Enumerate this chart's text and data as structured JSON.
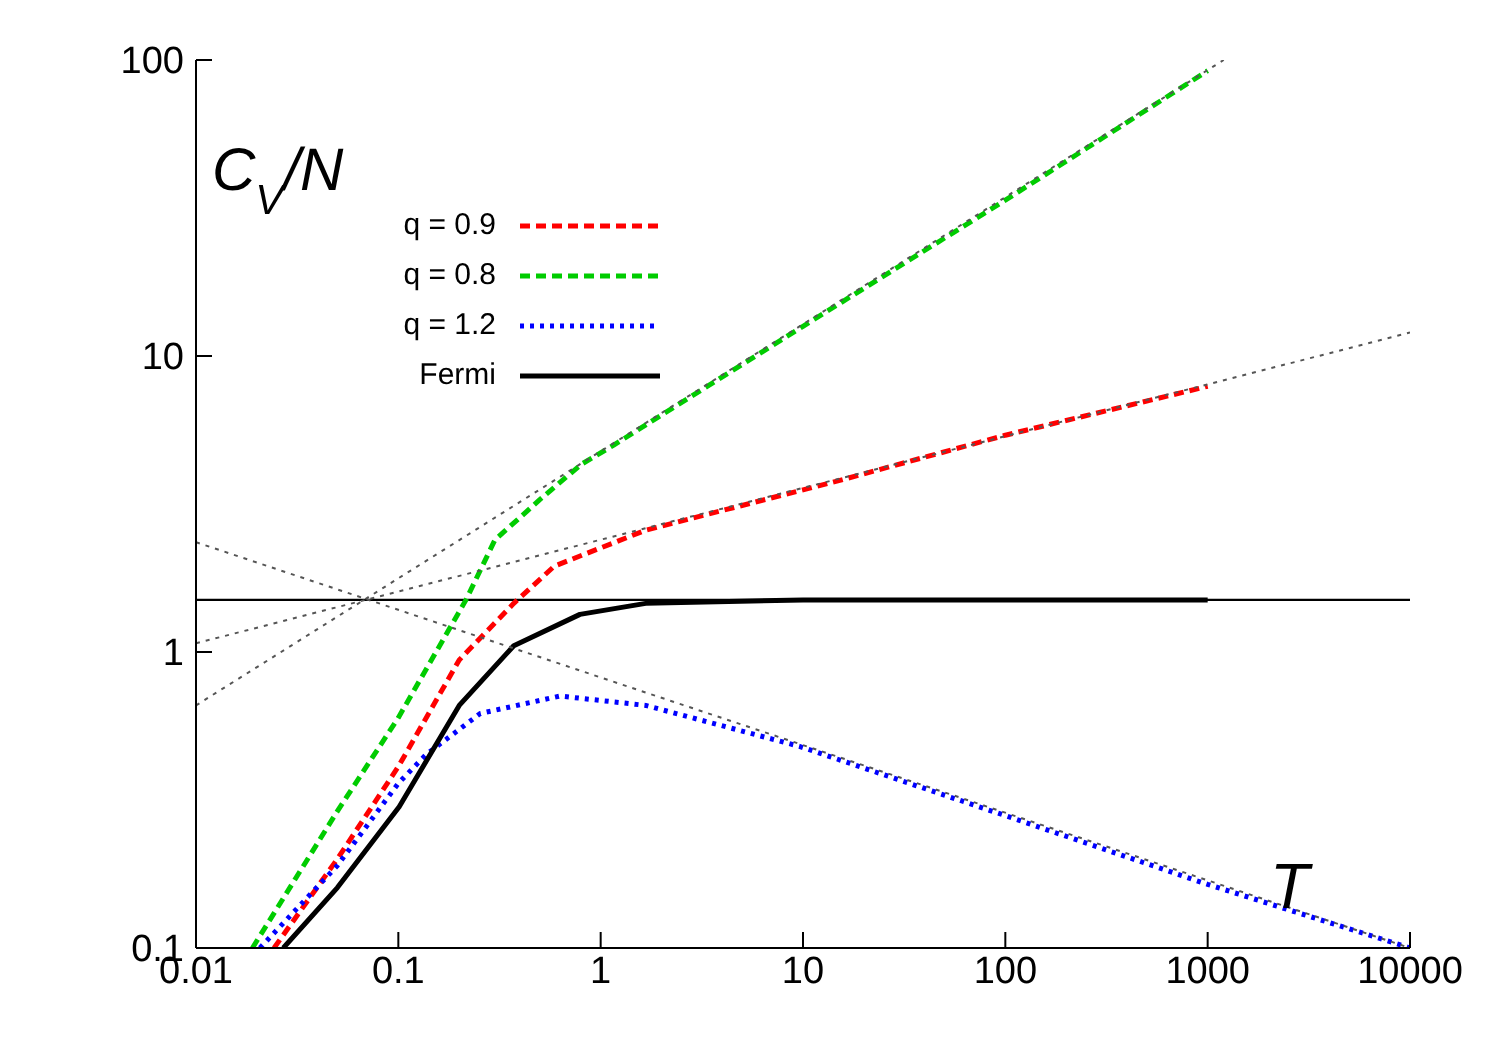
{
  "chart_data": {
    "type": "line",
    "xlabel": "T",
    "ylabel": "C$_{V}$/N",
    "log": "xy",
    "xlim": [
      0.01,
      10000
    ],
    "xticks": [
      0.01,
      0.1,
      1,
      10,
      100,
      1000,
      10000
    ],
    "ylim": [
      0.1,
      100
    ],
    "yticks": [
      0.1,
      1,
      10,
      100
    ],
    "grid": false,
    "legend": "top left",
    "marker": "none",
    "ref_lines": [
      {
        "axis": "y",
        "value": 1.5,
        "color": "#000000",
        "line_style": "solid"
      }
    ],
    "series": [
      {
        "name": "q = 0.9",
        "color": "#ff0000",
        "line_style": "dashed",
        "x": [
          0.0243,
          0.05,
          0.1,
          0.2,
          0.372,
          0.59,
          1.67,
          15.2,
          100,
          1000
        ],
        "values": [
          0.1,
          0.2,
          0.41,
          0.94,
          1.46,
          1.95,
          2.58,
          3.8,
          5.4,
          7.9
        ]
      },
      {
        "name": "q = 0.8",
        "color": "#00cc00",
        "line_style": "dashed",
        "x": [
          0.019,
          0.05,
          0.1,
          0.216,
          0.3,
          0.5,
          0.8,
          1.16,
          10,
          100,
          1000
        ],
        "values": [
          0.1,
          0.29,
          0.6,
          1.5,
          2.39,
          3.27,
          4.3,
          5.0,
          12.6,
          33.6,
          92
        ]
      },
      {
        "name": "q = 1.2",
        "color": "#0000ff",
        "line_style": "dotted",
        "x": [
          0.0207,
          0.05,
          0.1,
          0.137,
          0.254,
          0.63,
          1.67,
          9.6,
          100,
          1000,
          10000
        ],
        "values": [
          0.1,
          0.19,
          0.36,
          0.45,
          0.62,
          0.71,
          0.66,
          0.48,
          0.28,
          0.164,
          0.1
        ]
      },
      {
        "name": "Fermi",
        "color": "#000000",
        "line_style": "solid",
        "x": [
          0.027,
          0.05,
          0.101,
          0.2,
          0.372,
          0.79,
          1.67,
          10,
          1000
        ],
        "values": [
          0.1,
          0.16,
          0.3,
          0.66,
          1.05,
          1.34,
          1.46,
          1.5,
          1.5
        ]
      },
      {
        "color": "#555555",
        "line_style": "dotted",
        "x": [
          0.01,
          1200
        ],
        "values": [
          0.66,
          100
        ]
      },
      {
        "color": "#555555",
        "line_style": "dotted",
        "x": [
          0.01,
          10000
        ],
        "values": [
          1.07,
          12
        ]
      },
      {
        "color": "#555555",
        "line_style": "dotted",
        "x": [
          0.01,
          10000
        ],
        "values": [
          2.35,
          0.1
        ]
      }
    ]
  }
}
